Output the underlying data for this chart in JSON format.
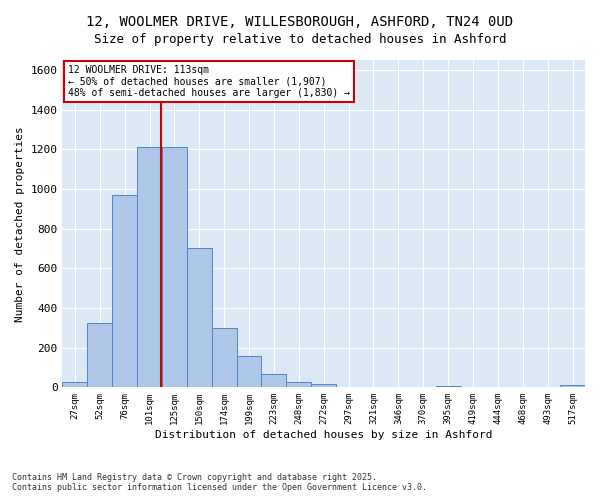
{
  "title1": "12, WOOLMER DRIVE, WILLESBOROUGH, ASHFORD, TN24 0UD",
  "title2": "Size of property relative to detached houses in Ashford",
  "xlabel": "Distribution of detached houses by size in Ashford",
  "ylabel": "Number of detached properties",
  "categories": [
    "27sqm",
    "52sqm",
    "76sqm",
    "101sqm",
    "125sqm",
    "150sqm",
    "174sqm",
    "199sqm",
    "223sqm",
    "248sqm",
    "272sqm",
    "297sqm",
    "321sqm",
    "346sqm",
    "370sqm",
    "395sqm",
    "419sqm",
    "444sqm",
    "468sqm",
    "493sqm",
    "517sqm"
  ],
  "values": [
    25,
    325,
    970,
    1210,
    1210,
    700,
    300,
    160,
    65,
    25,
    15,
    0,
    0,
    0,
    0,
    8,
    0,
    0,
    0,
    0,
    12
  ],
  "bar_color": "#aec6e8",
  "bar_edge_color": "#4f86c6",
  "background_color": "#dce8f5",
  "fig_background_color": "#ffffff",
  "grid_color": "#ffffff",
  "property_label": "12 WOOLMER DRIVE: 113sqm",
  "annotation_line1": "← 50% of detached houses are smaller (1,907)",
  "annotation_line2": "48% of semi-detached houses are larger (1,830) →",
  "vline_color": "#cc0000",
  "annotation_box_color": "#cc0000",
  "footnote1": "Contains HM Land Registry data © Crown copyright and database right 2025.",
  "footnote2": "Contains public sector information licensed under the Open Government Licence v3.0.",
  "ylim": [
    0,
    1650
  ],
  "vline_x_index": 3.48
}
